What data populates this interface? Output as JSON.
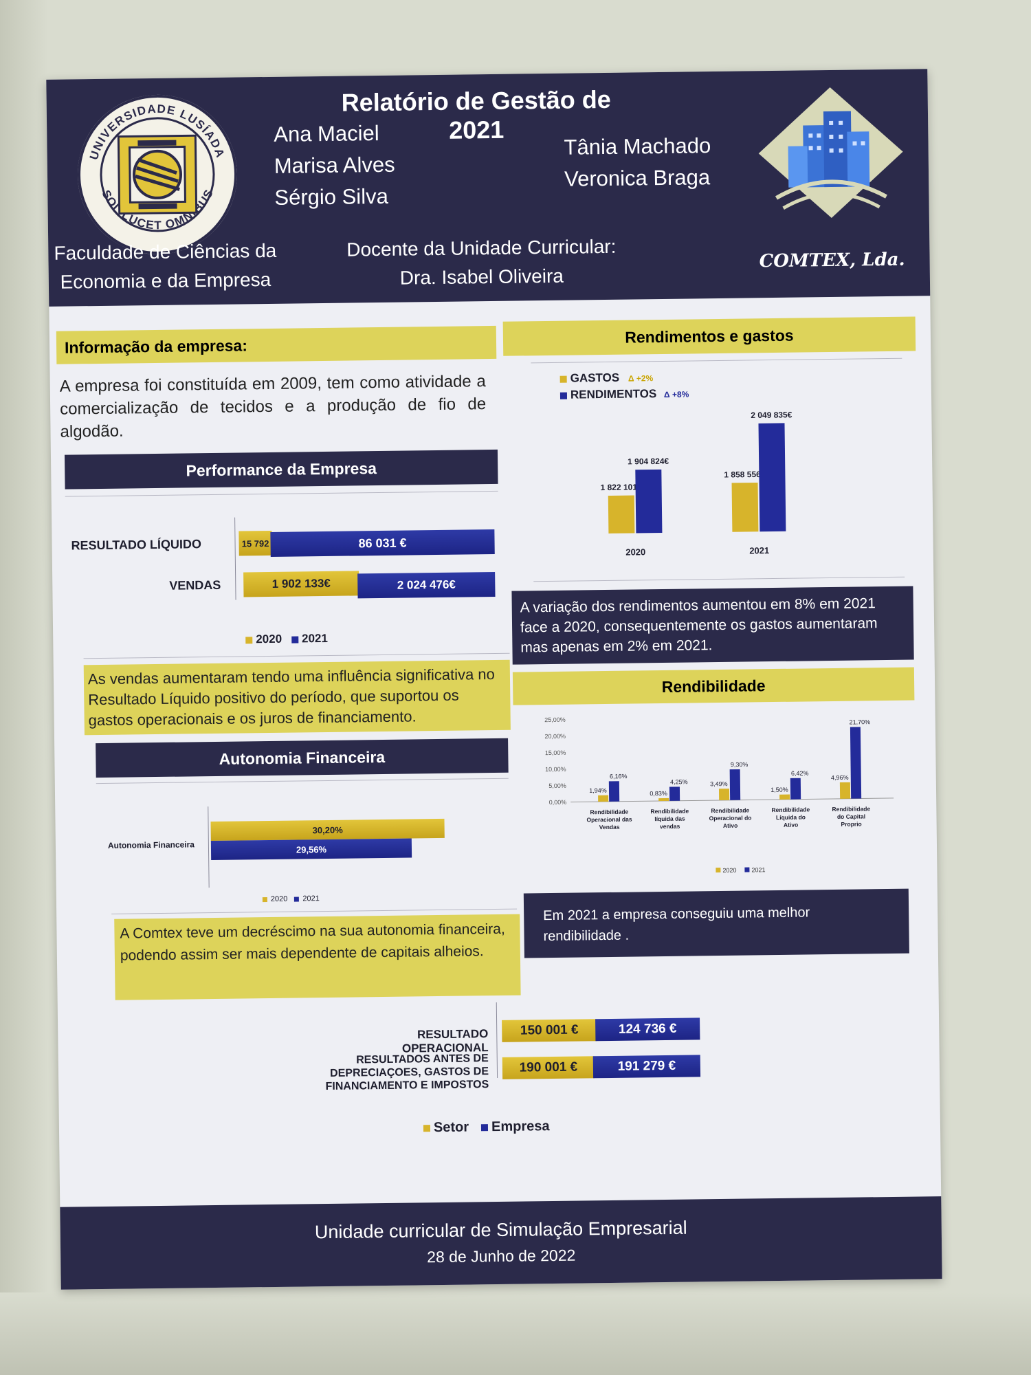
{
  "header": {
    "title": "Relatório de Gestão de 2021",
    "authors_left": [
      "Ana Maciel",
      "Marisa Alves",
      "Sérgio Silva"
    ],
    "authors_right": [
      "Tânia Machado",
      "Veronica Braga"
    ],
    "faculty": [
      "Faculdade de Ciências da",
      "Economia e da Empresa"
    ],
    "teacher_label": "Docente da Unidade Curricular:",
    "teacher_name": "Dra. Isabel Oliveira",
    "university_seal_text": "UNIVERSIDADE LUSÍADA · SOL LUCET OMNIBUS",
    "company_logo": "COMTEX, Lda."
  },
  "info": {
    "heading": "Informação da empresa:",
    "text": "A empresa foi constituída em 2009, tem como atividade a comercialização de tecidos e a produção de fio de algodão."
  },
  "performance": {
    "heading": "Performance da Empresa",
    "rows": [
      {
        "label": "RESULTADO LÍQUIDO",
        "v2020": "15 792",
        "v2021": "86 031 €"
      },
      {
        "label": "VENDAS",
        "v2020": "1 902 133€",
        "v2021": "2 024 476€"
      }
    ],
    "legend": [
      "2020",
      "2021"
    ],
    "note": "As vendas aumentaram tendo uma influência significativa no Resultado Líquido positivo do período, que suportou os gastos operacionais e os juros de financiamento."
  },
  "autonomia": {
    "heading": "Autonomia Financeira",
    "label": "Autonomia Financeira",
    "v2020": "30,20%",
    "v2021": "29,56%",
    "legend": [
      "2020",
      "2021"
    ],
    "note": "A Comtex teve um decréscimo na sua autonomia financeira, podendo assim ser mais dependente de capitais alheios."
  },
  "rendimentos": {
    "heading": "Rendimentos e gastos",
    "legend_gastos": "GASTOS",
    "legend_gastos_delta": "Δ +2%",
    "legend_rend": "RENDIMENTOS",
    "legend_rend_delta": "Δ +8%",
    "note": "A variação dos rendimentos aumentou em 8% em 2021 face a 2020, consequentemente os gastos aumentaram mas apenas em 2% em 2021."
  },
  "rendibilidade": {
    "heading": "Rendibilidade",
    "legend": [
      "2020",
      "2021"
    ],
    "note": "Em 2021 a empresa conseguiu uma melhor rendibilidade ."
  },
  "setor": {
    "rows": [
      {
        "label": "RESULTADO OPERACIONAL",
        "setor": "150 001 €",
        "empresa": "124 736 €"
      },
      {
        "label": "RESULTADOS ANTES DE DEPRECIAÇOES, GASTOS DE FINANCIAMENTO  E IMPOSTOS",
        "setor": "190 001 €",
        "empresa": "191 279 €"
      }
    ],
    "legend_setor": "Setor",
    "legend_empresa": "Empresa"
  },
  "footer": {
    "line1": "Unidade curricular de Simulação Empresarial",
    "line2": "28 de Junho de 2022"
  },
  "colors": {
    "navy": "#2b2a4a",
    "yellow": "#ddd35a",
    "bar2020": "#d7b42b",
    "bar2021": "#232b9a"
  },
  "chart_data": [
    {
      "type": "bar",
      "title": "Rendimentos e gastos",
      "categories": [
        "2020",
        "2021"
      ],
      "series": [
        {
          "name": "GASTOS",
          "values": [
            1822101,
            1858556
          ],
          "labels": [
            "1 822 101€",
            "1 858 556€"
          ]
        },
        {
          "name": "RENDIMENTOS",
          "values": [
            1904824,
            2049835
          ],
          "labels": [
            "1 904 824€",
            "2 049 835€"
          ]
        }
      ],
      "ylim": [
        1700000,
        2100000
      ]
    },
    {
      "type": "bar",
      "title": "Rendibilidade",
      "categories": [
        "Rendibilidade Operacional das Vendas",
        "Rendibilidade líquida das vendas",
        "Rendibilidade Operacional do Ativo",
        "Rendibilidade Líquida do Ativo",
        "Rendibilidade do Capital Proprio"
      ],
      "series": [
        {
          "name": "2020",
          "values": [
            1.94,
            0.83,
            3.49,
            1.5,
            4.96
          ],
          "labels": [
            "1,94%",
            "0,83%",
            "3,49%",
            "1,50%",
            "4,96%"
          ]
        },
        {
          "name": "2021",
          "values": [
            6.16,
            4.25,
            9.3,
            6.42,
            21.7
          ],
          "labels": [
            "6,16%",
            "4,25%",
            "9,30%",
            "6,42%",
            "21,70%"
          ]
        }
      ],
      "ytick_labels": [
        "0,00%",
        "5,00%",
        "10,00%",
        "15,00%",
        "20,00%",
        "25,00%"
      ],
      "ylim": [
        0,
        25
      ]
    }
  ]
}
